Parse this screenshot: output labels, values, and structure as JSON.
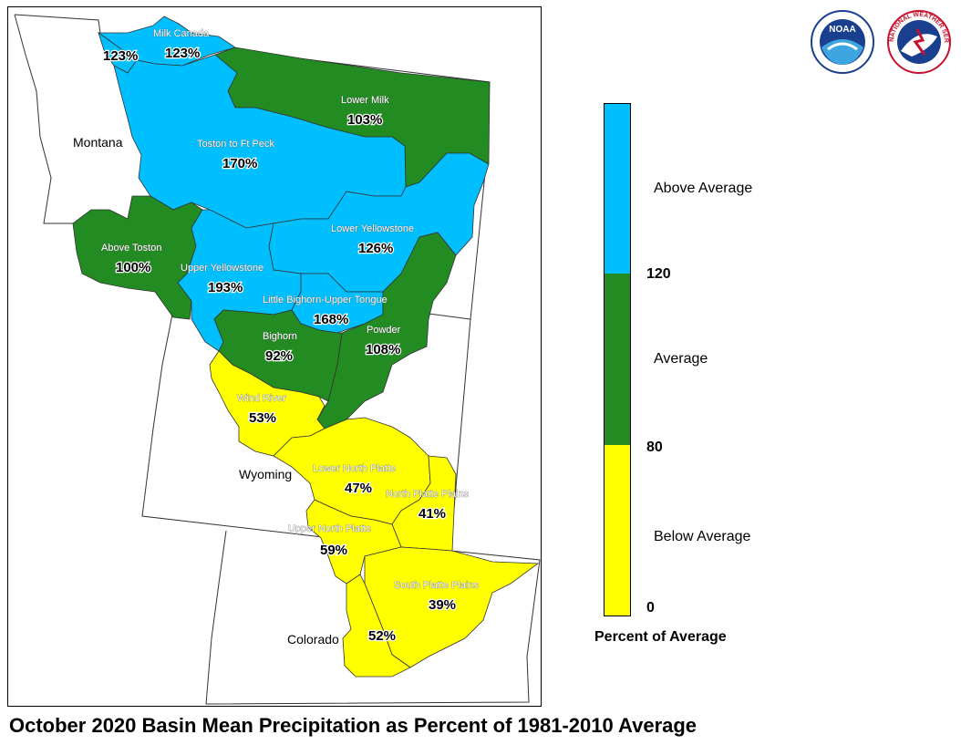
{
  "title": "October 2020 Basin Mean Precipitation as Percent of 1981-2010 Average",
  "legend": {
    "title": "Percent of Average",
    "categories": [
      {
        "label": "Above Average",
        "color": "#00bfff"
      },
      {
        "label": "Average",
        "color": "#228b22"
      },
      {
        "label": "Below Average",
        "color": "#ffff00"
      }
    ],
    "ticks": [
      "120",
      "80",
      "0"
    ]
  },
  "states": [
    "Montana",
    "Wyoming",
    "Colorado"
  ],
  "basins": [
    {
      "name": "Milk Canada",
      "pct": "123%",
      "color": "#00bfff"
    },
    {
      "name": "",
      "pct": "123%",
      "color": "#00bfff"
    },
    {
      "name": "Lower Milk",
      "pct": "103%",
      "color": "#228b22"
    },
    {
      "name": "Toston to Ft Peck",
      "pct": "170%",
      "color": "#00bfff"
    },
    {
      "name": "Above Toston",
      "pct": "100%",
      "color": "#228b22"
    },
    {
      "name": "Lower Yellowstone",
      "pct": "126%",
      "color": "#00bfff"
    },
    {
      "name": "Upper Yellowstone",
      "pct": "193%",
      "color": "#00bfff"
    },
    {
      "name": "Little Bighorn-Upper Tongue",
      "pct": "168%",
      "color": "#00bfff"
    },
    {
      "name": "Bighorn",
      "pct": "92%",
      "color": "#228b22"
    },
    {
      "name": "Powder",
      "pct": "108%",
      "color": "#228b22"
    },
    {
      "name": "Wind River",
      "pct": "53%",
      "color": "#ffff00"
    },
    {
      "name": "Lower North Platte",
      "pct": "47%",
      "color": "#ffff00"
    },
    {
      "name": "North Platte Plains",
      "pct": "41%",
      "color": "#ffff00"
    },
    {
      "name": "Upper North Platte",
      "pct": "59%",
      "color": "#ffff00"
    },
    {
      "name": "South Platte Plains",
      "pct": "39%",
      "color": "#ffff00"
    },
    {
      "name": "",
      "pct": "52%",
      "color": "#ffff00"
    }
  ],
  "logos": {
    "noaa_text": "NOAA",
    "nws_text": "NATIONAL WEATHER SERVICE"
  }
}
